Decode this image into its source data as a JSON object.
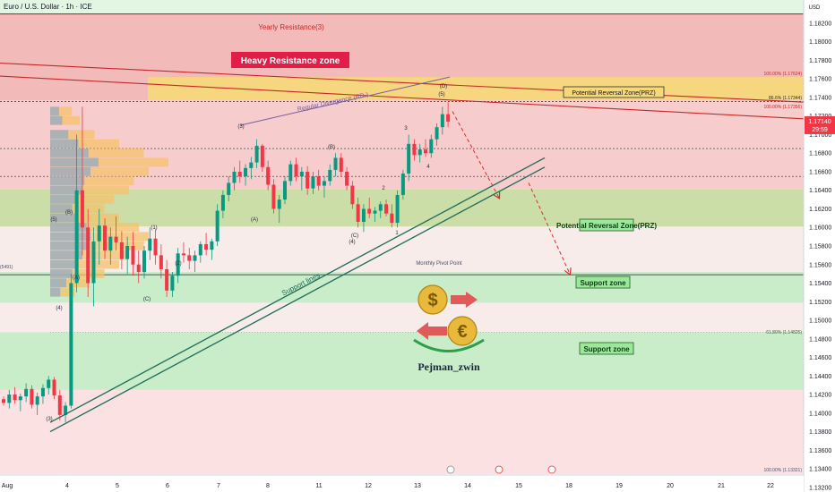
{
  "chart_data": {
    "type": "candlestick",
    "symbol_title": "Euro / U.S. Dollar · 1h · ICE",
    "currency": "USD",
    "price_axis": {
      "ylim": [
        1.1315,
        1.1845
      ],
      "ticks": [
        "1.18200",
        "1.18000",
        "1.17800",
        "1.17600",
        "1.17400",
        "1.17200",
        "1.17000",
        "1.16800",
        "1.16600",
        "1.16400",
        "1.16200",
        "1.16000",
        "1.15800",
        "1.15600",
        "1.15400",
        "1.15200",
        "1.15000",
        "1.14800",
        "1.14600",
        "1.14400",
        "1.14200",
        "1.14000",
        "1.13800",
        "1.13600",
        "1.13400",
        "1.13200"
      ],
      "current_price": "1.17140",
      "countdown": "29:59"
    },
    "time_axis": {
      "labels": [
        "Aug",
        "4",
        "5",
        "6",
        "7",
        "8",
        "11",
        "12",
        "13",
        "14",
        "15",
        "18",
        "19",
        "20",
        "21",
        "22"
      ]
    },
    "zones": [
      {
        "label": "Heavy Resistance zone",
        "from": 1.1737,
        "to": 1.183,
        "color": "#f2b6b6"
      },
      {
        "label": "Potential Reversal Zone(PRZ)",
        "from": 1.1737,
        "to": 1.1762,
        "color": "#f6d77a"
      },
      {
        "label": "Support zone",
        "from": 1.1601,
        "to": 1.1641,
        "color": "#c9dca3"
      },
      {
        "label": "Support zone",
        "from": 1.1519,
        "to": 1.1552,
        "color": "#c6edc6"
      },
      {
        "label": "Support zone",
        "from": 1.1425,
        "to": 1.1487,
        "color": "#c6edc6"
      }
    ],
    "levels": [
      {
        "label": "Yearly Resistance(3)",
        "price": 1.183
      },
      {
        "label": "Monthly Pivot Point",
        "price": 1.1549
      },
      {
        "label": "100.00% (1.17624)",
        "price": 1.17624
      },
      {
        "label": "86.6% (1.17344)",
        "price": 1.17344
      },
      {
        "label": "100.00% (1.17356)",
        "price": 1.17356
      },
      {
        "label": "61.80% (1.14825)",
        "price": 1.14825
      },
      {
        "label": "100.00% (1.13321)",
        "price": 1.13321
      },
      {
        "label": "(5491)",
        "price": 1.1549
      }
    ],
    "annotations": [
      "Regular Divergence (RD-)",
      "Support lines",
      "Pejman_zwin"
    ],
    "wave_labels": [
      "(3)",
      "(4)",
      "(5)",
      "(A)",
      "(B)",
      "(C)",
      "(1)",
      "(2)",
      "(3)",
      "(4)",
      "(5)",
      "1",
      "2",
      "3",
      "4",
      "(A)",
      "(B)",
      "(C)",
      "(D)"
    ],
    "candles": [
      [
        1.1415,
        1.1418,
        1.1408,
        1.1411
      ],
      [
        1.1411,
        1.1425,
        1.1405,
        1.142
      ],
      [
        1.142,
        1.1428,
        1.141,
        1.1414
      ],
      [
        1.1414,
        1.1421,
        1.1402,
        1.1418
      ],
      [
        1.1418,
        1.1432,
        1.1412,
        1.1426
      ],
      [
        1.1426,
        1.143,
        1.1405,
        1.1409
      ],
      [
        1.1409,
        1.1422,
        1.1398,
        1.1418
      ],
      [
        1.1418,
        1.1431,
        1.141,
        1.1427
      ],
      [
        1.1427,
        1.144,
        1.142,
        1.1436
      ],
      [
        1.1436,
        1.1439,
        1.1415,
        1.1419
      ],
      [
        1.1419,
        1.1425,
        1.1392,
        1.1398
      ],
      [
        1.1398,
        1.1412,
        1.139,
        1.1408
      ],
      [
        1.1408,
        1.155,
        1.1405,
        1.154
      ],
      [
        1.154,
        1.17,
        1.153,
        1.164
      ],
      [
        1.164,
        1.173,
        1.157,
        1.16
      ],
      [
        1.16,
        1.162,
        1.1525,
        1.154
      ],
      [
        1.154,
        1.16,
        1.1515,
        1.1585
      ],
      [
        1.1585,
        1.162,
        1.156,
        1.1602
      ],
      [
        1.1602,
        1.161,
        1.1566,
        1.1575
      ],
      [
        1.1575,
        1.16,
        1.156,
        1.159
      ],
      [
        1.159,
        1.1612,
        1.1575,
        1.1584
      ],
      [
        1.1584,
        1.1596,
        1.1555,
        1.1566
      ],
      [
        1.1566,
        1.159,
        1.155,
        1.158
      ],
      [
        1.158,
        1.1595,
        1.1548,
        1.156
      ],
      [
        1.156,
        1.1575,
        1.154,
        1.1552
      ],
      [
        1.1552,
        1.158,
        1.1545,
        1.1575
      ],
      [
        1.1575,
        1.16,
        1.1565,
        1.1588
      ],
      [
        1.1588,
        1.1598,
        1.156,
        1.157
      ],
      [
        1.157,
        1.1582,
        1.1545,
        1.1555
      ],
      [
        1.1555,
        1.1565,
        1.1525,
        1.1532
      ],
      [
        1.1532,
        1.1552,
        1.1525,
        1.1548
      ],
      [
        1.1548,
        1.1578,
        1.154,
        1.1572
      ],
      [
        1.1572,
        1.1584,
        1.1562,
        1.157
      ],
      [
        1.157,
        1.1578,
        1.1555,
        1.1564
      ],
      [
        1.1564,
        1.1575,
        1.1552,
        1.157
      ],
      [
        1.157,
        1.1585,
        1.1562,
        1.1582
      ],
      [
        1.1582,
        1.1594,
        1.157,
        1.1576
      ],
      [
        1.1576,
        1.1588,
        1.1565,
        1.1585
      ],
      [
        1.1585,
        1.1625,
        1.158,
        1.1618
      ],
      [
        1.1618,
        1.164,
        1.161,
        1.1635
      ],
      [
        1.1635,
        1.1655,
        1.1628,
        1.1648
      ],
      [
        1.1648,
        1.1665,
        1.164,
        1.166
      ],
      [
        1.166,
        1.1672,
        1.1648,
        1.1655
      ],
      [
        1.1655,
        1.1668,
        1.1645,
        1.1664
      ],
      [
        1.1664,
        1.1676,
        1.1652,
        1.167
      ],
      [
        1.167,
        1.1695,
        1.1664,
        1.1688
      ],
      [
        1.1688,
        1.169,
        1.166,
        1.1665
      ],
      [
        1.1665,
        1.1672,
        1.164,
        1.1646
      ],
      [
        1.1646,
        1.1652,
        1.1615,
        1.162
      ],
      [
        1.162,
        1.1635,
        1.1605,
        1.163
      ],
      [
        1.163,
        1.1655,
        1.1625,
        1.165
      ],
      [
        1.165,
        1.1672,
        1.1645,
        1.1668
      ],
      [
        1.1668,
        1.1675,
        1.165,
        1.1655
      ],
      [
        1.1655,
        1.1665,
        1.164,
        1.166
      ],
      [
        1.166,
        1.1666,
        1.1635,
        1.1642
      ],
      [
        1.1642,
        1.166,
        1.1636,
        1.1655
      ],
      [
        1.1655,
        1.1662,
        1.164,
        1.1645
      ],
      [
        1.1645,
        1.1655,
        1.1632,
        1.165
      ],
      [
        1.165,
        1.1668,
        1.1645,
        1.1662
      ],
      [
        1.1662,
        1.168,
        1.1655,
        1.1675
      ],
      [
        1.1675,
        1.168,
        1.1655,
        1.166
      ],
      [
        1.166,
        1.1665,
        1.164,
        1.1645
      ],
      [
        1.1645,
        1.165,
        1.162,
        1.1625
      ],
      [
        1.1625,
        1.1632,
        1.16,
        1.1606
      ],
      [
        1.1606,
        1.1625,
        1.1595,
        1.162
      ],
      [
        1.162,
        1.1632,
        1.161,
        1.1615
      ],
      [
        1.1615,
        1.1622,
        1.1606,
        1.1618
      ],
      [
        1.1618,
        1.1628,
        1.161,
        1.1625
      ],
      [
        1.1625,
        1.163,
        1.1612,
        1.1615
      ],
      [
        1.1615,
        1.1625,
        1.16,
        1.1605
      ],
      [
        1.1605,
        1.164,
        1.16,
        1.1635
      ],
      [
        1.1635,
        1.1662,
        1.163,
        1.1658
      ],
      [
        1.1658,
        1.17,
        1.165,
        1.169
      ],
      [
        1.169,
        1.1695,
        1.1672,
        1.1678
      ],
      [
        1.1678,
        1.169,
        1.167,
        1.1684
      ],
      [
        1.1684,
        1.1695,
        1.1676,
        1.168
      ],
      [
        1.168,
        1.17,
        1.1675,
        1.1695
      ],
      [
        1.1695,
        1.1712,
        1.1688,
        1.1708
      ],
      [
        1.1708,
        1.173,
        1.17,
        1.1722
      ],
      [
        1.1722,
        1.1735,
        1.1708,
        1.1714
      ]
    ]
  },
  "tags": {
    "przLabel": "Potential Reversal Zone(PRZ)",
    "monthlyPivot": "Monthly Pivot Point"
  },
  "colors": {
    "up": "#089981",
    "down": "#f23645",
    "heavyResistance": "#f2b6b6",
    "prz": "#f6d77a",
    "supportGreen": "#c6edc6",
    "supportOlive": "#c9dca3",
    "lowerPink": "#fbe1e1",
    "upperGreen": "#e3f6e3",
    "arrowRed": "#d32f2f",
    "supportLine": "#1e6b5a",
    "heavyLabelBg": "#e11d48"
  }
}
